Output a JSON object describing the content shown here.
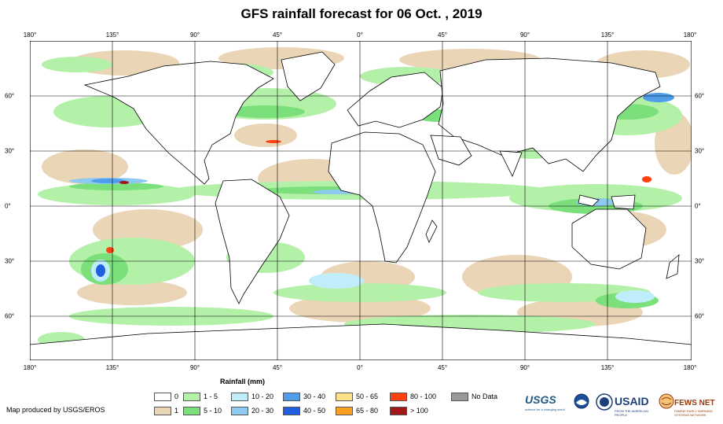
{
  "title": "GFS rainfall forecast for 06 Oct. , 2019",
  "longitude_ticks": [
    "180°",
    "135°",
    "90°",
    "45°",
    "0°",
    "45°",
    "90°",
    "135°",
    "180°"
  ],
  "latitude_ticks": [
    "60°",
    "30°",
    "0°",
    "30°",
    "60°"
  ],
  "legend": {
    "title": "Rainfall (mm)",
    "items": [
      {
        "label": "0",
        "color": "#ffffff"
      },
      {
        "label": "1",
        "color": "#ead5b7"
      },
      {
        "label": "1 - 5",
        "color": "#b3f0a8"
      },
      {
        "label": "5 - 10",
        "color": "#7be07b"
      },
      {
        "label": "10 - 20",
        "color": "#bfeefa"
      },
      {
        "label": "20 - 30",
        "color": "#8ec9f0"
      },
      {
        "label": "30 - 40",
        "color": "#4f9de8"
      },
      {
        "label": "40 - 50",
        "color": "#1f5fe0"
      },
      {
        "label": "50 - 65",
        "color": "#ffe18a"
      },
      {
        "label": "65 - 80",
        "color": "#ffa020"
      },
      {
        "label": "80 - 100",
        "color": "#ff4010"
      },
      {
        "label": "> 100",
        "color": "#a01818"
      },
      {
        "label": "No Data",
        "color": "#999999"
      }
    ]
  },
  "credit": "Map produced by USGS/EROS",
  "logos": {
    "usgs": "USGS",
    "usgs_tagline": "science for a changing world",
    "usaid": "USAID",
    "usaid_tagline": "FROM THE AMERICAN PEOPLE",
    "fews": "FEWS NET",
    "fews_tagline": "FAMINE EARLY WARNING SYSTEMS NETWORK"
  }
}
